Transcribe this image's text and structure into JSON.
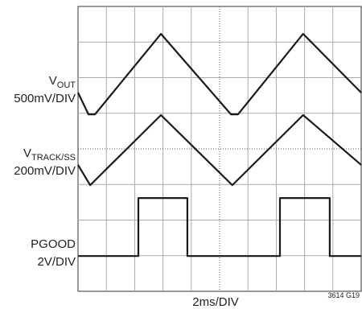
{
  "chart_data": {
    "type": "line",
    "xlabel": "2ms/DIV",
    "figure_id": "3614 G19",
    "xlim": [
      0,
      10
    ],
    "ylim": [
      0,
      8
    ],
    "grid": true,
    "series": [
      {
        "name": "V",
        "subscript": "OUT",
        "scale": "500mV/DIV",
        "color": "#1a1a1a",
        "x": [
          0,
          0.37,
          0.6,
          2.93,
          5.4,
          5.65,
          7.95,
          10
        ],
        "values": [
          5.58,
          4.97,
          4.97,
          7.23,
          4.97,
          4.97,
          7.23,
          5.58
        ]
      },
      {
        "name": "V",
        "subscript": "TRACK/SS",
        "scale": "200mV/DIV",
        "color": "#1a1a1a",
        "x": [
          0,
          0.43,
          2.93,
          5.45,
          7.95,
          10
        ],
        "values": [
          3.55,
          2.98,
          4.95,
          2.98,
          4.95,
          3.55
        ]
      },
      {
        "name": "PGOOD",
        "scale": "2V/DIV",
        "color": "#1a1a1a",
        "x": [
          0,
          2.13,
          2.13,
          3.86,
          3.86,
          7.13,
          7.13,
          8.89,
          8.89,
          10
        ],
        "values": [
          0.99,
          0.99,
          2.62,
          2.62,
          0.99,
          0.99,
          2.62,
          2.62,
          0.99,
          0.99
        ]
      }
    ]
  }
}
